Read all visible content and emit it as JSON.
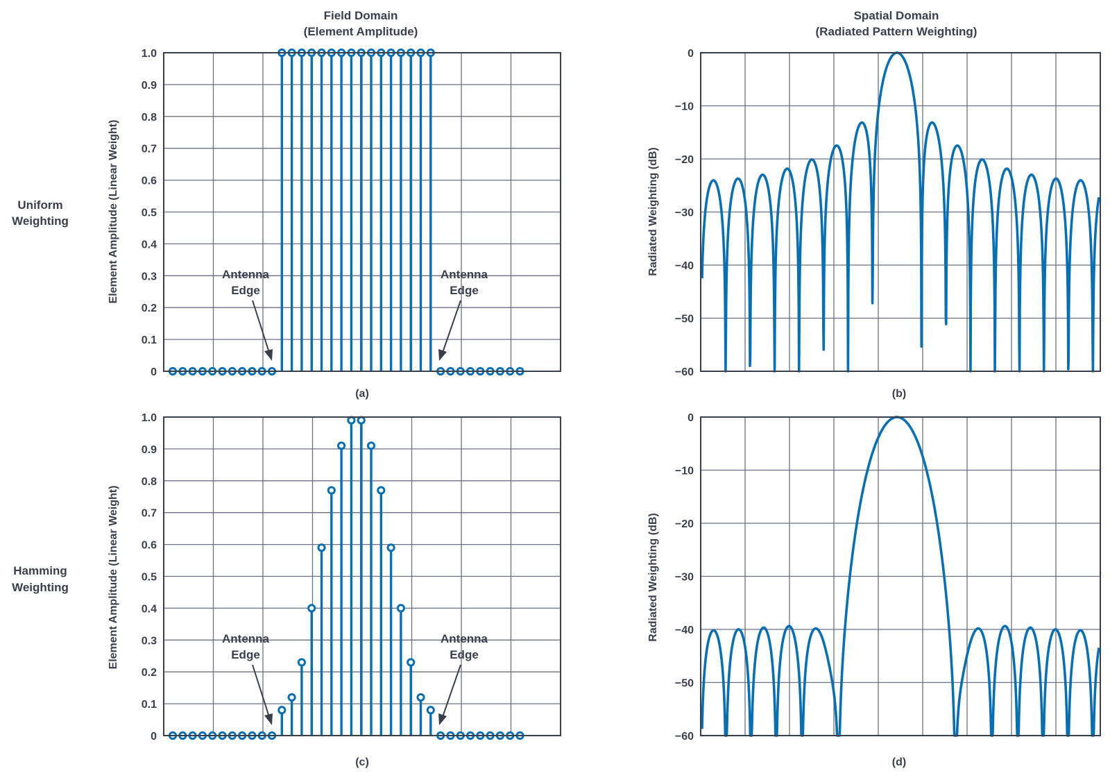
{
  "headers": {
    "field": [
      "Field Domain",
      "(Element Amplitude)"
    ],
    "spatial": [
      "Spatial Domain",
      "(Radiated Pattern Weighting)"
    ]
  },
  "rows": [
    {
      "label": [
        "Uniform",
        "Weighting"
      ]
    },
    {
      "label": [
        "Hamming",
        "Weighting"
      ]
    }
  ],
  "annotation": [
    "Antenna",
    "Edge"
  ],
  "colors": {
    "series": "#0a6fb0",
    "grid": "#6b7080",
    "frame": "#3a3f4d",
    "text": "#3a3f4d"
  },
  "chart_data": [
    {
      "type": "scatter",
      "panel": "(a)",
      "ylabel": "Element Amplitude (Linear Weight)",
      "ylim": [
        0,
        1.0
      ],
      "yticks": [
        "0",
        "0.1",
        "0.2",
        "0.3",
        "0.4",
        "0.5",
        "0.6",
        "0.7",
        "0.8",
        "0.9",
        "1.0"
      ],
      "grid": true,
      "x": [
        1,
        2,
        3,
        4,
        5,
        6,
        7,
        8,
        9,
        10,
        11,
        12,
        13,
        14,
        15,
        16,
        17,
        18,
        19,
        20,
        21,
        22,
        23,
        24,
        25,
        26,
        27,
        28,
        29,
        30,
        31,
        32,
        33,
        34,
        35,
        36
      ],
      "values": [
        0,
        0,
        0,
        0,
        0,
        0,
        0,
        0,
        0,
        0,
        0,
        1,
        1,
        1,
        1,
        1,
        1,
        1,
        1,
        1,
        1,
        1,
        1,
        1,
        1,
        1,
        1,
        0,
        0,
        0,
        0,
        0,
        0,
        0,
        0,
        0
      ]
    },
    {
      "type": "line",
      "panel": "(b)",
      "ylabel": "Radiated Weighting (dB)",
      "ylim": [
        -60,
        0
      ],
      "yticks": [
        "0",
        "−10",
        "−20",
        "−30",
        "−40",
        "−50",
        "−60"
      ],
      "grid": true,
      "weighting": "uniform",
      "elements": 16
    },
    {
      "type": "scatter",
      "panel": "(c)",
      "ylabel": "Element Amplitude (Linear Weight)",
      "ylim": [
        0,
        1.0
      ],
      "yticks": [
        "0",
        "0.1",
        "0.2",
        "0.3",
        "0.4",
        "0.5",
        "0.6",
        "0.7",
        "0.8",
        "0.9",
        "1.0"
      ],
      "grid": true,
      "x": [
        1,
        2,
        3,
        4,
        5,
        6,
        7,
        8,
        9,
        10,
        11,
        12,
        13,
        14,
        15,
        16,
        17,
        18,
        19,
        20,
        21,
        22,
        23,
        24,
        25,
        26,
        27,
        28,
        29,
        30,
        31,
        32,
        33,
        34,
        35,
        36
      ],
      "values": [
        0,
        0,
        0,
        0,
        0,
        0,
        0,
        0,
        0,
        0,
        0,
        0.08,
        0.12,
        0.23,
        0.4,
        0.59,
        0.77,
        0.91,
        0.99,
        0.99,
        0.91,
        0.77,
        0.59,
        0.4,
        0.23,
        0.12,
        0.08,
        0,
        0,
        0,
        0,
        0,
        0,
        0,
        0,
        0
      ]
    },
    {
      "type": "line",
      "panel": "(d)",
      "ylabel": "Radiated Weighting (dB)",
      "ylim": [
        -60,
        0
      ],
      "yticks": [
        "0",
        "−10",
        "−20",
        "−30",
        "−40",
        "−50",
        "−60"
      ],
      "grid": true,
      "weighting": "hamming",
      "elements": 16
    }
  ]
}
